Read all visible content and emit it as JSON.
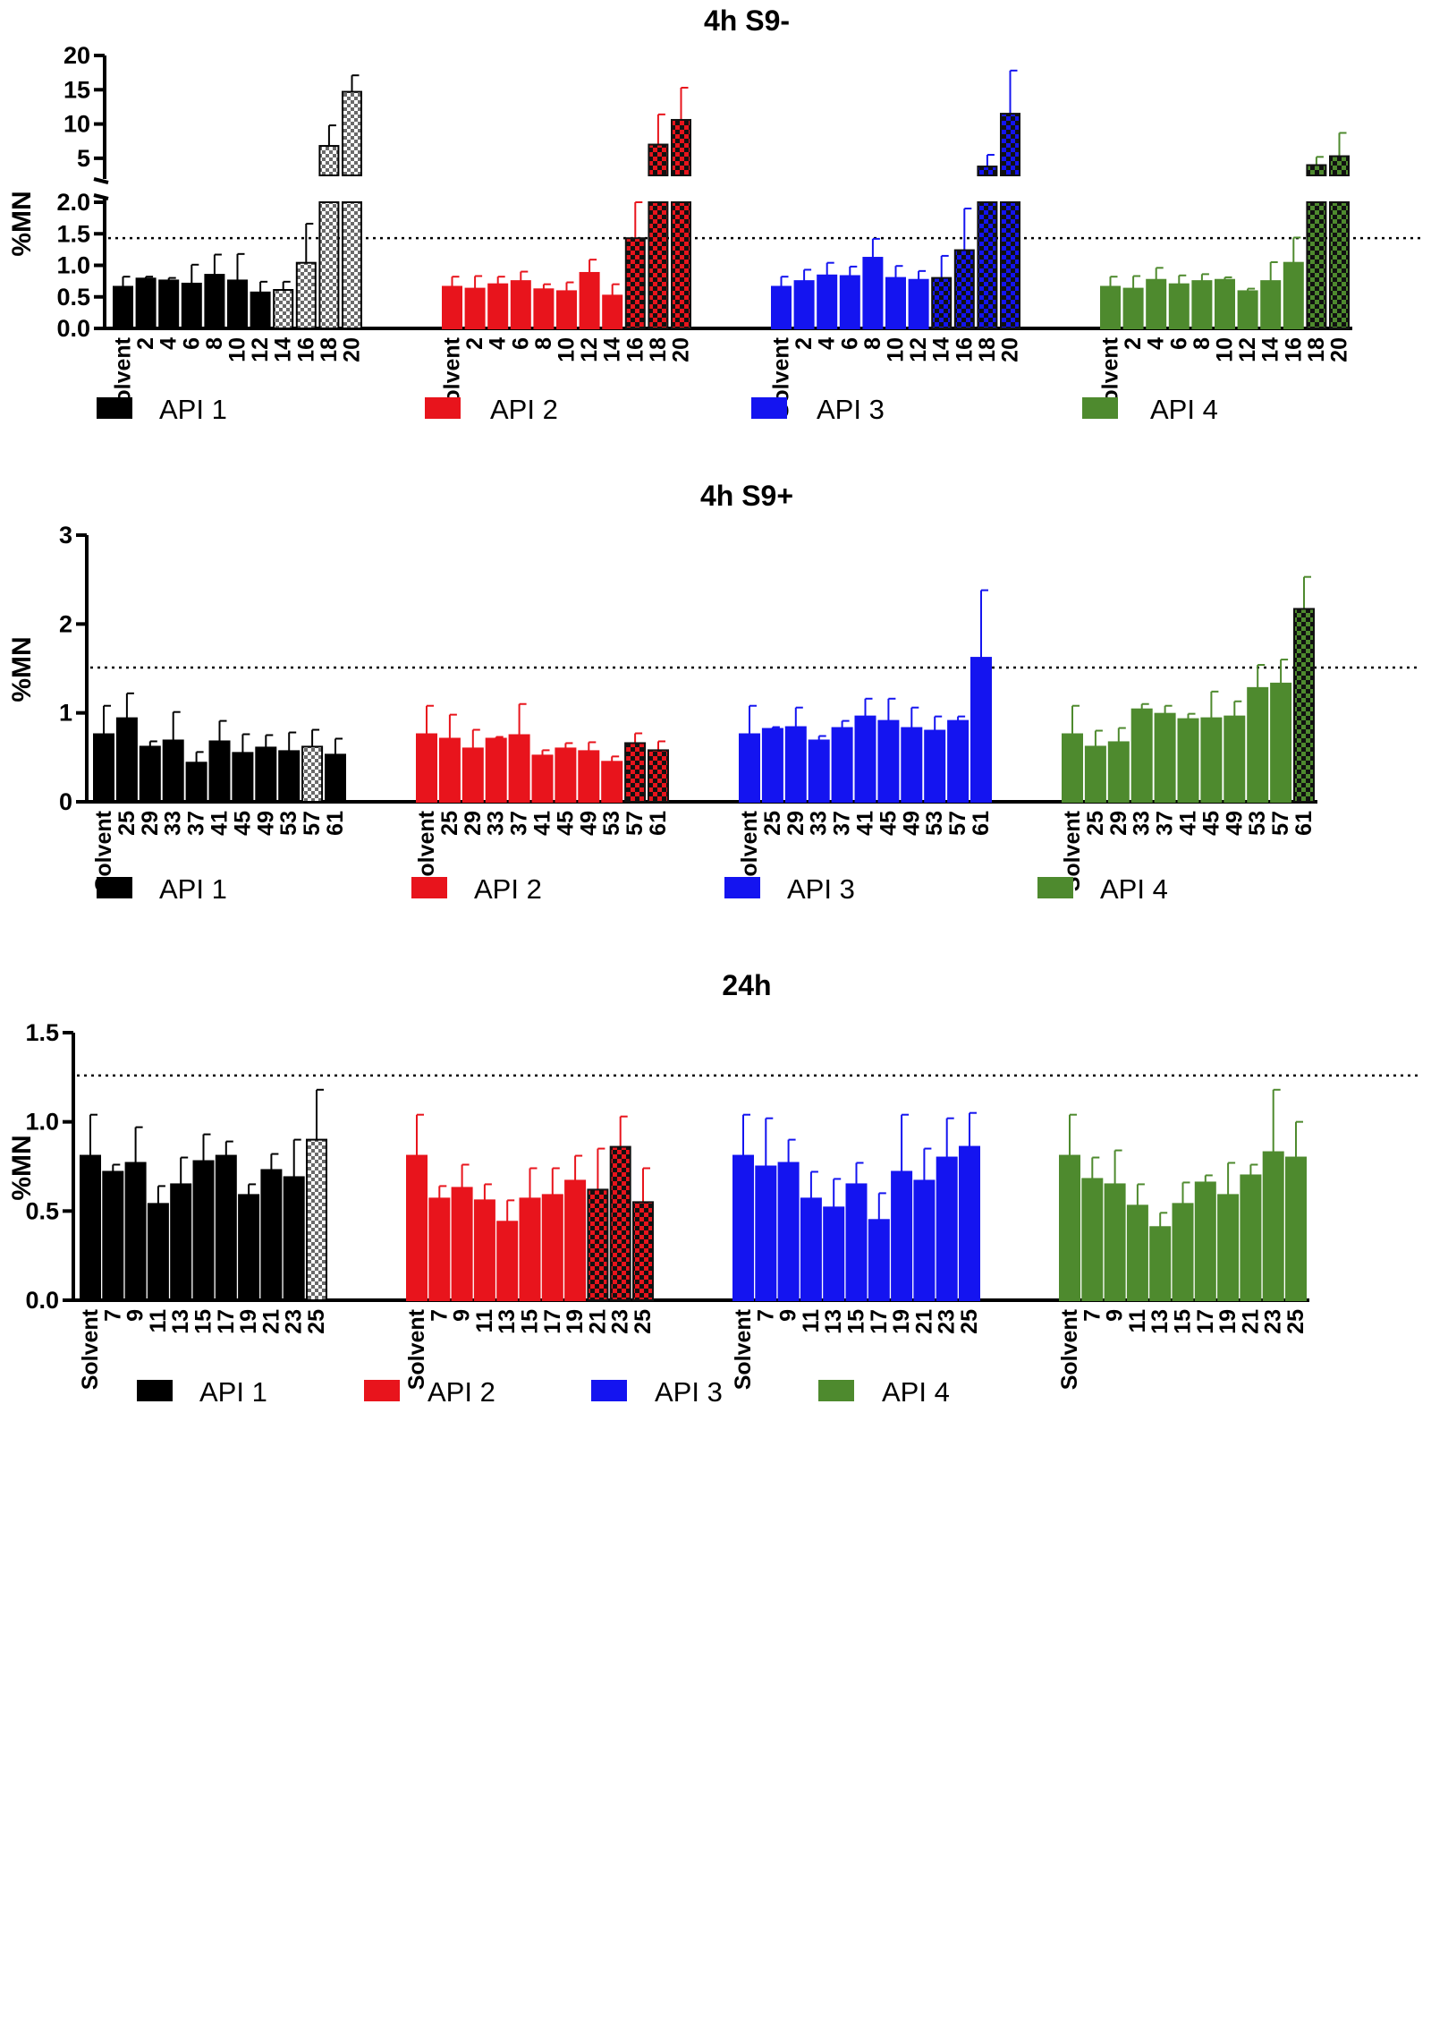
{
  "chart_data": [
    {
      "type": "bar",
      "title": "4h S9-",
      "ylabel": "%MN",
      "threshold": 1.43,
      "axis_break": {
        "lower_range": [
          0,
          2.0
        ],
        "upper_range": [
          2.5,
          20
        ],
        "upper_ticks": [
          5,
          10,
          15,
          20
        ],
        "lower_ticks": [
          0.0,
          0.5,
          1.0,
          1.5,
          2.0
        ],
        "lower_tick_labels": [
          "0.0",
          "0.5",
          "1.0",
          "1.5",
          "2.0"
        ]
      },
      "groups": [
        {
          "name": "API 1",
          "color": "#000000",
          "categories": [
            "Solvent",
            "2",
            "4",
            "6",
            "8",
            "10",
            "12",
            "14",
            "16",
            "18",
            "20"
          ],
          "values": [
            0.66,
            0.79,
            0.76,
            0.71,
            0.85,
            0.76,
            0.57,
            0.61,
            1.04,
            6.8,
            14.7
          ],
          "errors": [
            0.16,
            0.03,
            0.04,
            0.3,
            0.32,
            0.42,
            0.17,
            0.13,
            0.62,
            3.0,
            2.4
          ],
          "checkered": [
            false,
            false,
            false,
            false,
            false,
            false,
            false,
            true,
            true,
            true,
            true
          ]
        },
        {
          "name": "API 2",
          "color": "#e8141c",
          "categories": [
            "Solvent",
            "2",
            "4",
            "6",
            "8",
            "10",
            "12",
            "14",
            "16",
            "18",
            "20"
          ],
          "values": [
            0.66,
            0.63,
            0.7,
            0.75,
            0.62,
            0.59,
            0.88,
            0.52,
            1.43,
            7.0,
            10.6
          ],
          "errors": [
            0.16,
            0.2,
            0.12,
            0.15,
            0.08,
            0.14,
            0.21,
            0.18,
            0.57,
            4.4,
            4.7
          ],
          "checkered": [
            false,
            false,
            false,
            false,
            false,
            false,
            false,
            false,
            true,
            true,
            true
          ]
        },
        {
          "name": "API 3",
          "color": "#1414f0",
          "categories": [
            "Solvent",
            "2",
            "4",
            "6",
            "8",
            "10",
            "12",
            "14",
            "16",
            "18",
            "20"
          ],
          "values": [
            0.66,
            0.75,
            0.84,
            0.83,
            1.12,
            0.8,
            0.77,
            0.8,
            1.24,
            3.8,
            11.5
          ],
          "errors": [
            0.16,
            0.18,
            0.2,
            0.15,
            0.3,
            0.19,
            0.14,
            0.35,
            0.66,
            1.7,
            6.3
          ],
          "checkered": [
            false,
            false,
            false,
            false,
            false,
            false,
            false,
            true,
            true,
            true,
            true
          ]
        },
        {
          "name": "API 4",
          "color": "#4e8a2e",
          "categories": [
            "Solvent",
            "2",
            "4",
            "6",
            "8",
            "10",
            "12",
            "14",
            "16",
            "18",
            "20"
          ],
          "values": [
            0.66,
            0.63,
            0.77,
            0.7,
            0.75,
            0.77,
            0.59,
            0.75,
            1.04,
            4.0,
            5.3
          ],
          "errors": [
            0.16,
            0.2,
            0.19,
            0.14,
            0.11,
            0.04,
            0.04,
            0.3,
            0.4,
            1.2,
            3.4
          ],
          "checkered": [
            false,
            false,
            false,
            false,
            false,
            false,
            false,
            false,
            false,
            true,
            true
          ]
        }
      ]
    },
    {
      "type": "bar",
      "title": "4h S9+",
      "ylabel": "%MN",
      "threshold": 1.51,
      "ylim": [
        0,
        3
      ],
      "yticks": [
        0,
        1,
        2,
        3
      ],
      "ytick_labels": [
        "0",
        "1",
        "2",
        "3"
      ],
      "groups": [
        {
          "name": "API 1",
          "color": "#000000",
          "categories": [
            "Solvent",
            "25",
            "29",
            "33",
            "37",
            "41",
            "45",
            "49",
            "53",
            "57",
            "61"
          ],
          "values": [
            0.76,
            0.94,
            0.62,
            0.69,
            0.44,
            0.68,
            0.55,
            0.61,
            0.57,
            0.62,
            0.53
          ],
          "errors": [
            0.32,
            0.28,
            0.06,
            0.32,
            0.12,
            0.23,
            0.21,
            0.14,
            0.21,
            0.19,
            0.18
          ],
          "checkered": [
            false,
            false,
            false,
            false,
            false,
            false,
            false,
            false,
            false,
            true,
            false
          ]
        },
        {
          "name": "API 2",
          "color": "#e8141c",
          "categories": [
            "Solvent",
            "25",
            "29",
            "33",
            "37",
            "41",
            "45",
            "49",
            "53",
            "57",
            "61"
          ],
          "values": [
            0.76,
            0.71,
            0.6,
            0.71,
            0.75,
            0.52,
            0.6,
            0.57,
            0.45,
            0.66,
            0.58
          ],
          "errors": [
            0.32,
            0.27,
            0.21,
            0.02,
            0.35,
            0.06,
            0.06,
            0.1,
            0.06,
            0.11,
            0.1
          ],
          "checkered": [
            false,
            false,
            false,
            false,
            false,
            false,
            false,
            false,
            false,
            true,
            true
          ]
        },
        {
          "name": "API 3",
          "color": "#1414f0",
          "categories": [
            "Solvent",
            "25",
            "29",
            "33",
            "37",
            "41",
            "45",
            "49",
            "53",
            "57",
            "61"
          ],
          "values": [
            0.76,
            0.82,
            0.84,
            0.69,
            0.83,
            0.96,
            0.91,
            0.83,
            0.8,
            0.91,
            1.62
          ],
          "errors": [
            0.32,
            0.02,
            0.22,
            0.05,
            0.08,
            0.2,
            0.25,
            0.23,
            0.16,
            0.05,
            0.76
          ],
          "checkered": [
            false,
            false,
            false,
            false,
            false,
            false,
            false,
            false,
            false,
            false,
            false
          ]
        },
        {
          "name": "API 4",
          "color": "#4e8a2e",
          "categories": [
            "Solvent",
            "25",
            "29",
            "33",
            "37",
            "41",
            "45",
            "49",
            "53",
            "57",
            "61"
          ],
          "values": [
            0.76,
            0.62,
            0.67,
            1.04,
            0.99,
            0.93,
            0.94,
            0.96,
            1.28,
            1.33,
            2.17
          ],
          "errors": [
            0.32,
            0.18,
            0.16,
            0.06,
            0.09,
            0.06,
            0.3,
            0.17,
            0.26,
            0.27,
            0.36
          ],
          "checkered": [
            false,
            false,
            false,
            false,
            false,
            false,
            false,
            false,
            false,
            false,
            true
          ]
        }
      ]
    },
    {
      "type": "bar",
      "title": "24h",
      "ylabel": "%MN",
      "threshold": 1.26,
      "ylim": [
        0,
        1.5
      ],
      "yticks": [
        0,
        0.5,
        1.0,
        1.5
      ],
      "ytick_labels": [
        "0.0",
        "0.5",
        "1.0",
        "1.5"
      ],
      "groups": [
        {
          "name": "API 1",
          "color": "#000000",
          "categories": [
            "Solvent",
            "7",
            "9",
            "11",
            "13",
            "15",
            "17",
            "19",
            "21",
            "23",
            "25"
          ],
          "values": [
            0.81,
            0.72,
            0.77,
            0.54,
            0.65,
            0.78,
            0.81,
            0.59,
            0.73,
            0.69,
            0.9
          ],
          "errors": [
            0.23,
            0.04,
            0.2,
            0.1,
            0.15,
            0.15,
            0.08,
            0.06,
            0.09,
            0.21,
            0.28
          ],
          "checkered": [
            false,
            false,
            false,
            false,
            false,
            false,
            false,
            false,
            false,
            false,
            true
          ]
        },
        {
          "name": "API 2",
          "color": "#e8141c",
          "categories": [
            "Solvent",
            "7",
            "9",
            "11",
            "13",
            "15",
            "17",
            "19",
            "21",
            "23",
            "25"
          ],
          "values": [
            0.81,
            0.57,
            0.63,
            0.56,
            0.44,
            0.57,
            0.59,
            0.67,
            0.62,
            0.86,
            0.55
          ],
          "errors": [
            0.23,
            0.07,
            0.13,
            0.09,
            0.12,
            0.17,
            0.15,
            0.14,
            0.23,
            0.17,
            0.19
          ],
          "checkered": [
            false,
            false,
            false,
            false,
            false,
            false,
            false,
            false,
            true,
            true,
            true
          ]
        },
        {
          "name": "API 3",
          "color": "#1414f0",
          "categories": [
            "Solvent",
            "7",
            "9",
            "11",
            "13",
            "15",
            "17",
            "19",
            "21",
            "23",
            "25"
          ],
          "values": [
            0.81,
            0.75,
            0.77,
            0.57,
            0.52,
            0.65,
            0.45,
            0.72,
            0.67,
            0.8,
            0.86
          ],
          "errors": [
            0.23,
            0.27,
            0.13,
            0.15,
            0.16,
            0.12,
            0.15,
            0.32,
            0.18,
            0.22,
            0.19
          ],
          "checkered": [
            false,
            false,
            false,
            false,
            false,
            false,
            false,
            false,
            false,
            false,
            false
          ]
        },
        {
          "name": "API 4",
          "color": "#4e8a2e",
          "categories": [
            "Solvent",
            "7",
            "9",
            "11",
            "13",
            "15",
            "17",
            "19",
            "21",
            "23",
            "25"
          ],
          "values": [
            0.81,
            0.68,
            0.65,
            0.53,
            0.41,
            0.54,
            0.66,
            0.59,
            0.7,
            0.83,
            0.8
          ],
          "errors": [
            0.23,
            0.12,
            0.19,
            0.12,
            0.08,
            0.12,
            0.04,
            0.18,
            0.06,
            0.35,
            0.2
          ],
          "checkered": [
            false,
            false,
            false,
            false,
            false,
            false,
            false,
            false,
            false,
            false,
            false
          ]
        }
      ]
    }
  ]
}
